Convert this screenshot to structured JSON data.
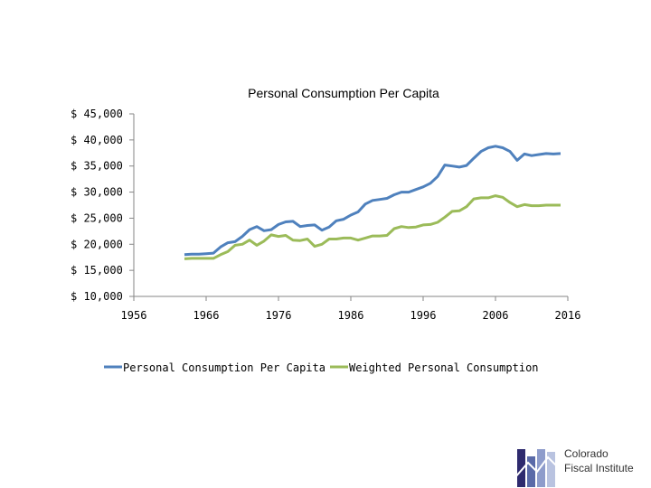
{
  "chart_data": {
    "type": "line",
    "title": "Personal Consumption Per Capita",
    "xlabel": "",
    "ylabel": "",
    "xlim": [
      1956,
      2016
    ],
    "ylim": [
      10000,
      45000
    ],
    "x_ticks": [
      "1956",
      "1966",
      "1976",
      "1986",
      "1996",
      "2006",
      "2016"
    ],
    "y_ticks": [
      "$ 10,000",
      "$ 15,000",
      "$ 20,000",
      "$ 25,000",
      "$ 30,000",
      "$ 35,000",
      "$ 40,000",
      "$ 45,000"
    ],
    "y_tick_values": [
      10000,
      15000,
      20000,
      25000,
      30000,
      35000,
      40000,
      45000
    ],
    "x_tick_values": [
      1956,
      1966,
      1976,
      1986,
      1996,
      2006,
      2016
    ],
    "legend_position": "bottom",
    "series": [
      {
        "name": "Personal Consumption Per Capita",
        "color": "#4f81bd",
        "x": [
          1963,
          1964,
          1965,
          1966,
          1967,
          1968,
          1969,
          1970,
          1971,
          1972,
          1973,
          1974,
          1975,
          1976,
          1977,
          1978,
          1979,
          1980,
          1981,
          1982,
          1983,
          1984,
          1985,
          1986,
          1987,
          1988,
          1989,
          1990,
          1991,
          1992,
          1993,
          1994,
          1995,
          1996,
          1997,
          1998,
          1999,
          2000,
          2001,
          2002,
          2003,
          2004,
          2005,
          2006,
          2007,
          2008,
          2009,
          2010,
          2011,
          2012,
          2013,
          2014,
          2015
        ],
        "values": [
          18000,
          18100,
          18100,
          18200,
          18300,
          19500,
          20300,
          20500,
          21500,
          22800,
          23400,
          22600,
          22800,
          23800,
          24300,
          24400,
          23400,
          23600,
          23700,
          22700,
          23300,
          24500,
          24800,
          25600,
          26200,
          27700,
          28400,
          28600,
          28800,
          29500,
          30000,
          30000,
          30500,
          31000,
          31700,
          33000,
          35200,
          35000,
          34800,
          35100,
          36500,
          37800,
          38500,
          38800,
          38500,
          37800,
          36100,
          37300,
          37000,
          37200,
          37400,
          37300,
          37400
        ]
      },
      {
        "name": "Weighted Personal Consumption",
        "color": "#9bbb59",
        "x": [
          1963,
          1964,
          1965,
          1966,
          1967,
          1968,
          1969,
          1970,
          1971,
          1972,
          1973,
          1974,
          1975,
          1976,
          1977,
          1978,
          1979,
          1980,
          1981,
          1982,
          1983,
          1984,
          1985,
          1986,
          1987,
          1988,
          1989,
          1990,
          1991,
          1992,
          1993,
          1994,
          1995,
          1996,
          1997,
          1998,
          1999,
          2000,
          2001,
          2002,
          2003,
          2004,
          2005,
          2006,
          2007,
          2008,
          2009,
          2010,
          2011,
          2012,
          2013,
          2014,
          2015
        ],
        "values": [
          17200,
          17300,
          17300,
          17300,
          17300,
          18000,
          18600,
          19800,
          20000,
          20800,
          19800,
          20600,
          21800,
          21500,
          21700,
          20800,
          20700,
          21000,
          19600,
          20000,
          21000,
          21000,
          21200,
          21200,
          20800,
          21200,
          21600,
          21600,
          21700,
          23000,
          23400,
          23200,
          23300,
          23700,
          23800,
          24200,
          25200,
          26300,
          26400,
          27200,
          28700,
          28900,
          28900,
          29300,
          29000,
          28000,
          27200,
          27600,
          27400,
          27400,
          27500,
          27500,
          27500
        ]
      }
    ]
  },
  "logo": {
    "line1": "Colorado",
    "line2": "Fiscal Institute",
    "colors": [
      "#2e2a6e",
      "#5a6aa8",
      "#8e9ccb",
      "#b9c3e0"
    ]
  }
}
